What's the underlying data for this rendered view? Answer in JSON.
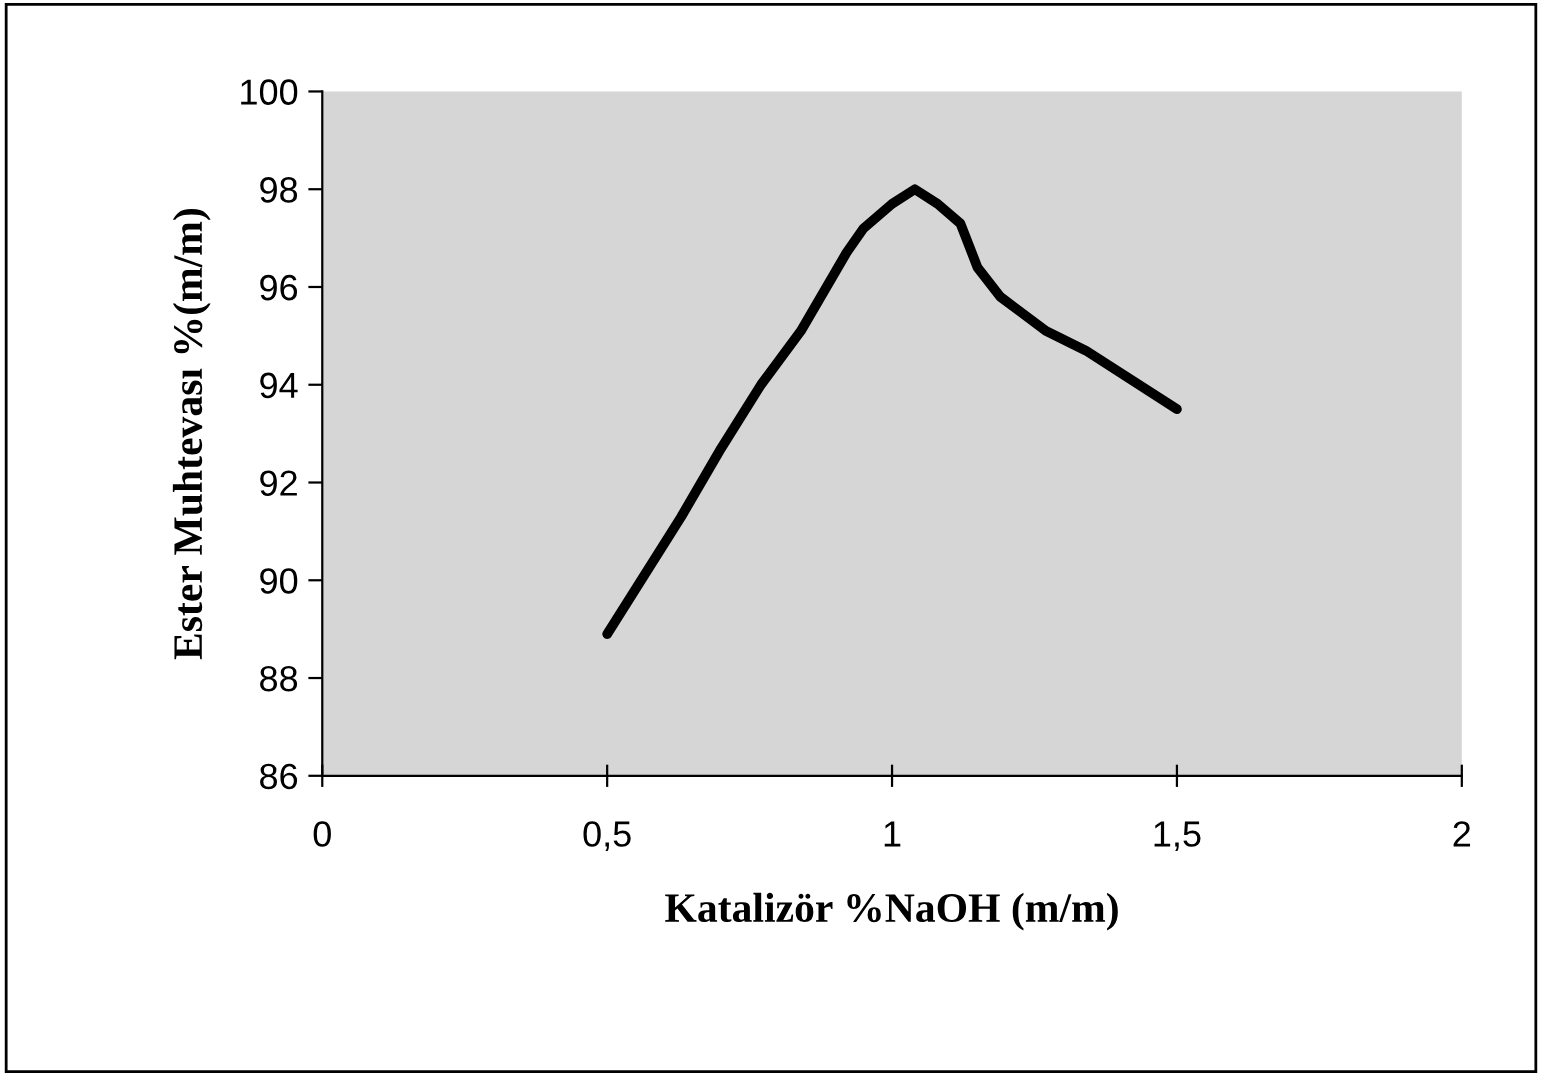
{
  "chart_data": {
    "type": "line",
    "xlabel": "Katalizör %NaOH (m/m)",
    "ylabel": "Ester Muhtevası %(m/m)",
    "x": [
      0.5,
      0.63,
      0.7,
      0.77,
      0.84,
      0.92,
      0.95,
      1.0,
      1.04,
      1.08,
      1.12,
      1.15,
      1.19,
      1.27,
      1.34,
      1.5
    ],
    "series": [
      {
        "color": "#000000",
        "values": [
          88.9,
          91.3,
          92.7,
          94.0,
          95.1,
          96.7,
          97.2,
          97.7,
          98.0,
          97.7,
          97.3,
          96.4,
          95.8,
          95.1,
          94.7,
          93.5
        ]
      }
    ],
    "xlim": [
      0,
      2
    ],
    "ylim": [
      86,
      100
    ],
    "xticks": [
      0,
      {
        "value": 0.5,
        "label": "0,5"
      },
      1,
      {
        "value": 1.5,
        "label": "1,5"
      },
      2
    ],
    "yticks": [
      86,
      88,
      90,
      92,
      94,
      96,
      98,
      100
    ],
    "grid": false,
    "legend": false,
    "marker": "none",
    "line_style": "solid"
  }
}
